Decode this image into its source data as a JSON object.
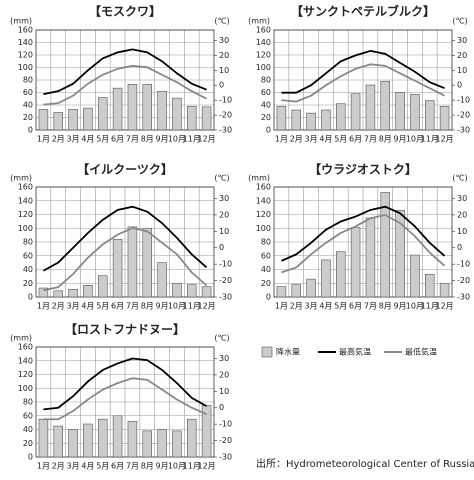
{
  "chart_data": [
    {
      "type": "combo",
      "title": "【モスクワ】",
      "y_label": "(mm)",
      "y2_label": "(℃)",
      "categories": [
        "1月",
        "2月",
        "3月",
        "4月",
        "5月",
        "6月",
        "7月",
        "8月",
        "9月",
        "10月",
        "11月",
        "12月"
      ],
      "series": [
        {
          "name": "降水量",
          "type": "bar",
          "color": "#cccccc",
          "values": [
            33,
            28,
            33,
            35,
            52,
            67,
            73,
            73,
            62,
            51,
            38,
            37
          ]
        },
        {
          "name": "最高気温",
          "type": "line",
          "axis": "y2",
          "color": "#000000",
          "values": [
            -6,
            -4,
            1,
            10,
            18,
            22,
            24,
            22,
            16,
            8,
            1,
            -3
          ]
        },
        {
          "name": "最低気温",
          "type": "line",
          "axis": "y2",
          "color": "#888888",
          "values": [
            -13,
            -12,
            -7,
            1,
            7,
            11,
            13,
            12,
            7,
            2,
            -4,
            -9
          ]
        }
      ],
      "ylim": [
        0,
        160
      ],
      "yticks": [
        0,
        20,
        40,
        60,
        80,
        100,
        120,
        140,
        160
      ],
      "y2lim": [
        -30,
        37
      ],
      "y2ticks": [
        -30,
        -20,
        -10,
        0,
        10,
        20,
        30
      ]
    },
    {
      "type": "combo",
      "title": "【サンクトペテルブルク】",
      "y_label": "(mm)",
      "y2_label": "(℃)",
      "categories": [
        "1月",
        "2月",
        "3月",
        "4月",
        "5月",
        "6月",
        "7月",
        "8月",
        "9月",
        "10月",
        "11月",
        "12月"
      ],
      "series": [
        {
          "type": "bar",
          "color": "#cccccc",
          "values": [
            38,
            32,
            27,
            32,
            42,
            58,
            72,
            78,
            60,
            57,
            47,
            38
          ]
        },
        {
          "type": "line",
          "axis": "y2",
          "color": "#000000",
          "values": [
            -5,
            -5,
            0,
            8,
            16,
            20,
            23,
            21,
            15,
            9,
            2,
            -2
          ]
        },
        {
          "type": "line",
          "axis": "y2",
          "color": "#888888",
          "values": [
            -10,
            -11,
            -7,
            0,
            6,
            11,
            14,
            13,
            8,
            3,
            -2,
            -7
          ]
        }
      ],
      "ylim": [
        0,
        160
      ],
      "yticks": [
        0,
        20,
        40,
        60,
        80,
        100,
        120,
        140,
        160
      ],
      "y2lim": [
        -30,
        37
      ],
      "y2ticks": [
        -30,
        -20,
        -10,
        0,
        10,
        20,
        30
      ]
    },
    {
      "type": "combo",
      "title": "【イルクーツク】",
      "y_label": "(mm)",
      "y2_label": "(℃)",
      "categories": [
        "1月",
        "2月",
        "3月",
        "4月",
        "5月",
        "6月",
        "7月",
        "8月",
        "9月",
        "10月",
        "11月",
        "12月"
      ],
      "series": [
        {
          "type": "bar",
          "color": "#cccccc",
          "values": [
            13,
            9,
            11,
            17,
            31,
            84,
            102,
            100,
            50,
            20,
            18,
            15
          ]
        },
        {
          "type": "line",
          "axis": "y2",
          "color": "#000000",
          "values": [
            -14,
            -9,
            0,
            9,
            17,
            23,
            25,
            22,
            15,
            6,
            -4,
            -12
          ]
        },
        {
          "type": "line",
          "axis": "y2",
          "color": "#888888",
          "values": [
            -26,
            -24,
            -16,
            -6,
            2,
            8,
            12,
            10,
            3,
            -4,
            -15,
            -23
          ]
        }
      ],
      "ylim": [
        0,
        160
      ],
      "yticks": [
        0,
        20,
        40,
        60,
        80,
        100,
        120,
        140,
        160
      ],
      "y2lim": [
        -30,
        37
      ],
      "y2ticks": [
        -30,
        -20,
        -10,
        0,
        10,
        20,
        30
      ]
    },
    {
      "type": "combo",
      "title": "【ウラジオストク】",
      "y_label": "(mm)",
      "y2_label": "(℃)",
      "categories": [
        "1月",
        "2月",
        "3月",
        "4月",
        "5月",
        "6月",
        "7月",
        "8月",
        "9月",
        "10月",
        "11月",
        "12月"
      ],
      "series": [
        {
          "type": "bar",
          "color": "#cccccc",
          "values": [
            15,
            18,
            26,
            54,
            66,
            101,
            115,
            152,
            126,
            61,
            33,
            20
          ]
        },
        {
          "type": "line",
          "axis": "y2",
          "color": "#000000",
          "values": [
            -8,
            -4,
            3,
            11,
            16,
            19,
            23,
            25,
            21,
            13,
            3,
            -5
          ]
        },
        {
          "type": "line",
          "axis": "y2",
          "color": "#888888",
          "values": [
            -15,
            -12,
            -4,
            3,
            9,
            13,
            18,
            20,
            15,
            7,
            -3,
            -11
          ]
        }
      ],
      "ylim": [
        0,
        160
      ],
      "yticks": [
        0,
        20,
        40,
        60,
        80,
        100,
        120,
        140,
        160
      ],
      "y2lim": [
        -30,
        37
      ],
      "y2ticks": [
        -30,
        -20,
        -10,
        0,
        10,
        20,
        30
      ]
    },
    {
      "type": "combo",
      "title": "【ロストフナドヌー】",
      "y_label": "(mm)",
      "y2_label": "(℃)",
      "categories": [
        "1月",
        "2月",
        "3月",
        "4月",
        "5月",
        "6月",
        "7月",
        "8月",
        "9月",
        "10月",
        "11月",
        "12月"
      ],
      "series": [
        {
          "type": "bar",
          "color": "#cccccc",
          "values": [
            55,
            45,
            40,
            48,
            55,
            60,
            52,
            38,
            40,
            38,
            55,
            75
          ]
        },
        {
          "type": "line",
          "axis": "y2",
          "color": "#000000",
          "values": [
            -1,
            0,
            7,
            16,
            23,
            27,
            30,
            29,
            23,
            15,
            6,
            1
          ]
        },
        {
          "type": "line",
          "axis": "y2",
          "color": "#888888",
          "values": [
            -7,
            -7,
            -2,
            5,
            11,
            15,
            18,
            17,
            11,
            5,
            0,
            -4
          ]
        }
      ],
      "ylim": [
        0,
        160
      ],
      "yticks": [
        0,
        20,
        40,
        60,
        80,
        100,
        120,
        140,
        160
      ],
      "y2lim": [
        -30,
        37
      ],
      "y2ticks": [
        -30,
        -20,
        -10,
        0,
        10,
        20,
        30
      ]
    }
  ],
  "source": "出所：Hydrometeorological Center of Russia"
}
